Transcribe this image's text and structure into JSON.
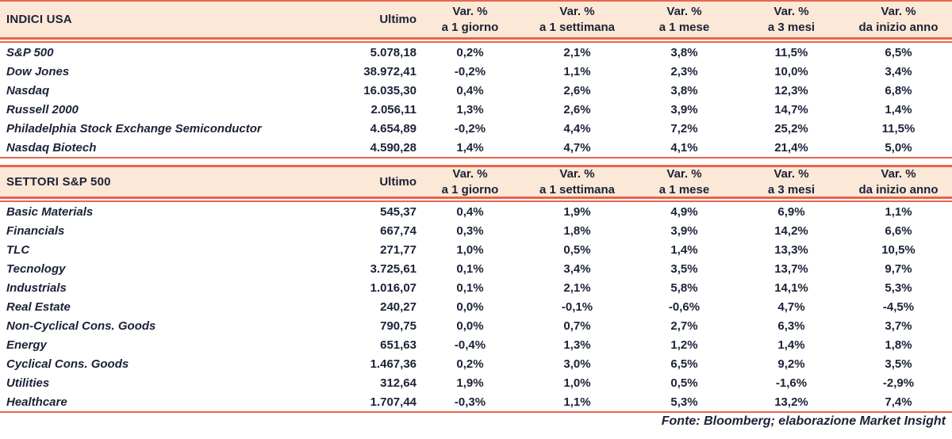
{
  "colors": {
    "accent_red": "#e7654c",
    "header_band": "#fbe8d7",
    "text": "#1b2238"
  },
  "column_headers": {
    "ultimo": "Ultimo",
    "var_label": "Var. %",
    "periods": [
      "a 1 giorno",
      "a 1 settimana",
      "a 1 mese",
      "a 3 mesi",
      "da inizio anno"
    ]
  },
  "tables": [
    {
      "title": "INDICI USA",
      "rows": [
        {
          "name": "S&P 500",
          "ultimo": "5.078,18",
          "changes": [
            "0,2%",
            "2,1%",
            "3,8%",
            "11,5%",
            "6,5%"
          ]
        },
        {
          "name": "Dow Jones",
          "ultimo": "38.972,41",
          "changes": [
            "-0,2%",
            "1,1%",
            "2,3%",
            "10,0%",
            "3,4%"
          ]
        },
        {
          "name": "Nasdaq",
          "ultimo": "16.035,30",
          "changes": [
            "0,4%",
            "2,6%",
            "3,8%",
            "12,3%",
            "6,8%"
          ]
        },
        {
          "name": "Russell 2000",
          "ultimo": "2.056,11",
          "changes": [
            "1,3%",
            "2,6%",
            "3,9%",
            "14,7%",
            "1,4%"
          ]
        },
        {
          "name": "Philadelphia Stock Exchange Semiconductor",
          "ultimo": "4.654,89",
          "changes": [
            "-0,2%",
            "4,4%",
            "7,2%",
            "25,2%",
            "11,5%"
          ]
        },
        {
          "name": "Nasdaq Biotech",
          "ultimo": "4.590,28",
          "changes": [
            "1,4%",
            "4,7%",
            "4,1%",
            "21,4%",
            "5,0%"
          ]
        }
      ]
    },
    {
      "title": "SETTORI S&P 500",
      "rows": [
        {
          "name": "Basic Materials",
          "ultimo": "545,37",
          "changes": [
            "0,4%",
            "1,9%",
            "4,9%",
            "6,9%",
            "1,1%"
          ]
        },
        {
          "name": "Financials",
          "ultimo": "667,74",
          "changes": [
            "0,3%",
            "1,8%",
            "3,9%",
            "14,2%",
            "6,6%"
          ]
        },
        {
          "name": "TLC",
          "ultimo": "271,77",
          "changes": [
            "1,0%",
            "0,5%",
            "1,4%",
            "13,3%",
            "10,5%"
          ]
        },
        {
          "name": "Tecnology",
          "ultimo": "3.725,61",
          "changes": [
            "0,1%",
            "3,4%",
            "3,5%",
            "13,7%",
            "9,7%"
          ]
        },
        {
          "name": "Industrials",
          "ultimo": "1.016,07",
          "changes": [
            "0,1%",
            "2,1%",
            "5,8%",
            "14,1%",
            "5,3%"
          ]
        },
        {
          "name": "Real Estate",
          "ultimo": "240,27",
          "changes": [
            "0,0%",
            "-0,1%",
            "-0,6%",
            "4,7%",
            "-4,5%"
          ]
        },
        {
          "name": "Non-Cyclical Cons. Goods",
          "ultimo": "790,75",
          "changes": [
            "0,0%",
            "0,7%",
            "2,7%",
            "6,3%",
            "3,7%"
          ]
        },
        {
          "name": "Energy",
          "ultimo": "651,63",
          "changes": [
            "-0,4%",
            "1,3%",
            "1,2%",
            "1,4%",
            "1,8%"
          ]
        },
        {
          "name": "Cyclical Cons. Goods",
          "ultimo": "1.467,36",
          "changes": [
            "0,2%",
            "3,0%",
            "6,5%",
            "9,2%",
            "3,5%"
          ]
        },
        {
          "name": "Utilities",
          "ultimo": "312,64",
          "changes": [
            "1,9%",
            "1,0%",
            "0,5%",
            "-1,6%",
            "-2,9%"
          ]
        },
        {
          "name": "Healthcare",
          "ultimo": "1.707,44",
          "changes": [
            "-0,3%",
            "1,1%",
            "5,3%",
            "13,2%",
            "7,4%"
          ]
        }
      ]
    }
  ],
  "source_note": "Fonte: Bloomberg; elaborazione Market Insight"
}
